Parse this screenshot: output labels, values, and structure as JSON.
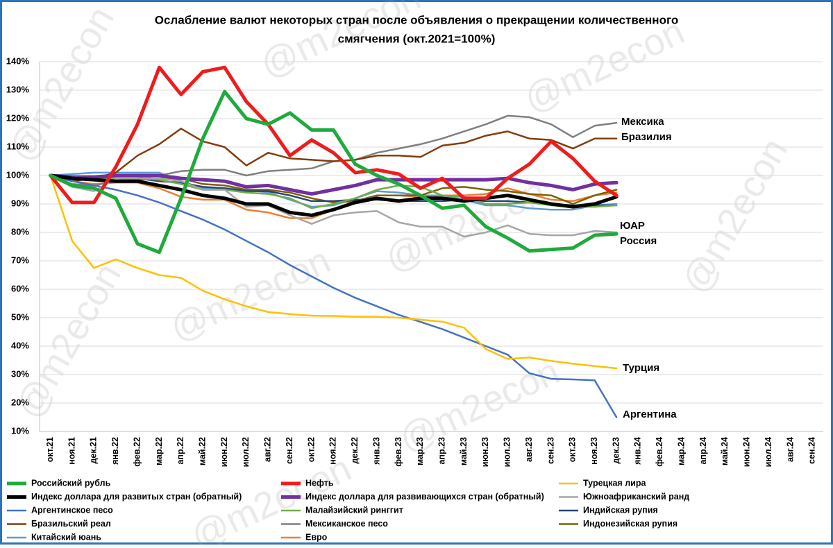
{
  "chart_data": {
    "type": "line",
    "title": [
      "Ослабление валют некоторых стран после объявления о прекращении количественного",
      "смягчения  (окт.2021=100%)"
    ],
    "watermark": "@m2econ",
    "categories": [
      "окт.21",
      "ноя.21",
      "дек.21",
      "янв.22",
      "фев.22",
      "мар.22",
      "апр.22",
      "май.22",
      "июн.22",
      "июл.22",
      "авг.22",
      "сен.22",
      "окт.22",
      "ноя.22",
      "дек.22",
      "янв.23",
      "фев.23",
      "мар.23",
      "апр.23",
      "май.23",
      "июн.23",
      "июл.23",
      "авг.23",
      "сен.23",
      "окт.23",
      "ноя.23",
      "дек.23",
      "янв.24",
      "фев.24",
      "мар.24",
      "апр.24",
      "май.24",
      "июн.24",
      "июл.24",
      "авг.24",
      "сен.24"
    ],
    "ylim": [
      10,
      140
    ],
    "yticks": [
      {
        "value": 10,
        "label": "10%"
      },
      {
        "value": 20,
        "label": "20%"
      },
      {
        "value": 30,
        "label": "30%"
      },
      {
        "value": 40,
        "label": "40%"
      },
      {
        "value": 50,
        "label": "50%"
      },
      {
        "value": 60,
        "label": "60%"
      },
      {
        "value": 70,
        "label": "70%"
      },
      {
        "value": 80,
        "label": "80%"
      },
      {
        "value": 90,
        "label": "90%"
      },
      {
        "value": 100,
        "label": "100%"
      },
      {
        "value": 110,
        "label": "110%"
      },
      {
        "value": 120,
        "label": "120%"
      },
      {
        "value": 130,
        "label": "130%"
      },
      {
        "value": 140,
        "label": "140%"
      }
    ],
    "grid": true,
    "legend": "bottom",
    "annotations": [
      "Мексика",
      "Бразилия",
      "ЮАР",
      "Россия",
      "Турция",
      "Аргентина"
    ],
    "series": [
      {
        "name": "Российский рубль",
        "color": "#1faa3c",
        "line_width": 5,
        "values": [
          100,
          96.5,
          95.5,
          92,
          76,
          73,
          92,
          113,
          129.5,
          120,
          118,
          122,
          116,
          116,
          104,
          100,
          97,
          93,
          88.5,
          89.5,
          82,
          78,
          73.5,
          74,
          74.5,
          79,
          79.5,
          null,
          null,
          null,
          null,
          null,
          null,
          null,
          null,
          null
        ]
      },
      {
        "name": "Нефть",
        "color": "#ee1c1c",
        "line_width": 5,
        "values": [
          100,
          90.5,
          90.5,
          103,
          118,
          138,
          128.5,
          136.5,
          138,
          126,
          118,
          107,
          112.5,
          108,
          101,
          102,
          100.5,
          95.5,
          99,
          92,
          92,
          99,
          104,
          112,
          106,
          98,
          93,
          null,
          null,
          null,
          null,
          null,
          null,
          null,
          null,
          null
        ]
      },
      {
        "name": "Турецкая лира",
        "color": "#ffc000",
        "line_width": 2.5,
        "values": [
          100,
          77,
          67.5,
          70.5,
          67.5,
          65,
          64,
          59.5,
          56.5,
          54,
          52,
          51.3,
          50.7,
          50.6,
          50.4,
          50.3,
          50,
          49.3,
          48.6,
          46.5,
          39,
          35.5,
          36,
          34.8,
          33.8,
          33,
          32.2,
          null,
          null,
          null,
          null,
          null,
          null,
          null,
          null,
          null
        ]
      },
      {
        "name": "Индекс доллара для развитых стран (обратный)",
        "color": "#000000",
        "line_width": 5,
        "values": [
          100,
          99,
          98.5,
          98,
          98,
          96.5,
          95,
          93,
          92,
          90,
          90,
          87,
          86,
          88,
          90.5,
          92,
          91,
          92,
          92,
          91,
          92,
          93,
          91.5,
          90,
          89,
          90,
          92.5,
          null,
          null,
          null,
          null,
          null,
          null,
          null,
          null,
          null
        ]
      },
      {
        "name": "Индекс доллара для развивающихся стран (обратный)",
        "color": "#7030a0",
        "line_width": 5,
        "values": [
          100,
          99.5,
          99.5,
          100,
          100,
          100,
          99,
          98.5,
          98,
          96,
          96.5,
          95,
          93.5,
          95,
          96.5,
          98.5,
          98.5,
          98.5,
          98.5,
          98.5,
          98.5,
          99,
          97.5,
          96.5,
          95,
          97,
          97.5,
          null,
          null,
          null,
          null,
          null,
          null,
          null,
          null,
          null
        ]
      },
      {
        "name": "Южноафриканский ранд",
        "color": "#a6a6a6",
        "line_width": 2.5,
        "values": [
          100,
          96,
          94.5,
          99,
          99,
          99,
          98,
          95,
          95,
          89,
          89.5,
          86,
          83,
          86,
          87,
          87.5,
          83.5,
          82,
          82,
          78.5,
          80,
          82.5,
          79.5,
          79,
          79,
          80.5,
          80,
          null,
          null,
          null,
          null,
          null,
          null,
          null,
          null,
          null
        ]
      },
      {
        "name": "Аргентинское песо",
        "color": "#4472c4",
        "line_width": 2.5,
        "values": [
          100,
          98,
          96.5,
          95,
          93,
          90.5,
          87.5,
          84.5,
          81,
          77,
          73,
          68.5,
          64.5,
          60.5,
          57,
          54,
          51,
          48.5,
          46,
          43,
          40,
          37,
          30.5,
          28.5,
          28.3,
          28,
          15,
          null,
          null,
          null,
          null,
          null,
          null,
          null,
          null,
          null
        ]
      },
      {
        "name": "Малайзийский ринггит",
        "color": "#70ad47",
        "line_width": 2.5,
        "values": [
          100,
          99,
          98.5,
          99,
          99,
          98.5,
          97,
          95,
          95,
          94,
          93.5,
          92,
          88.5,
          90,
          92,
          95,
          96.5,
          96,
          93,
          92.5,
          90,
          90,
          90.5,
          89.5,
          89,
          89,
          89.5,
          null,
          null,
          null,
          null,
          null,
          null,
          null,
          null,
          null
        ]
      },
      {
        "name": "Индийская рупия",
        "color": "#264478",
        "line_width": 2.5,
        "values": [
          100,
          99.5,
          99,
          99,
          99,
          98,
          97.5,
          96,
          95.5,
          94.5,
          94.5,
          93,
          91,
          91,
          91.5,
          91.5,
          91,
          91,
          91,
          91.5,
          91,
          91,
          90.5,
          90,
          89.5,
          89.5,
          89.5,
          null,
          null,
          null,
          null,
          null,
          null,
          null,
          null,
          null
        ]
      },
      {
        "name": "Бразильский реал",
        "color": "#843c0c",
        "line_width": 2.5,
        "values": [
          100,
          98,
          99,
          101,
          107,
          111,
          116.5,
          112,
          110,
          103.5,
          108,
          106,
          105.5,
          105,
          105.5,
          107,
          107,
          106.5,
          110.5,
          111.5,
          114,
          115.5,
          113,
          112.5,
          109.5,
          113,
          113,
          null,
          null,
          null,
          null,
          null,
          null,
          null,
          null,
          null
        ]
      },
      {
        "name": "Мексиканское песо",
        "color": "#7f7f7f",
        "line_width": 2.5,
        "values": [
          100,
          97,
          96.5,
          98,
          99,
          100,
          101.5,
          102,
          102,
          100,
          101.5,
          102,
          102.5,
          105,
          105.5,
          108,
          109.5,
          111,
          113,
          115.5,
          118,
          121,
          120.5,
          118,
          113.5,
          117.5,
          118.5,
          null,
          null,
          null,
          null,
          null,
          null,
          null,
          null,
          null
        ]
      },
      {
        "name": "Индонезийская рупия",
        "color": "#7f6000",
        "line_width": 2.5,
        "values": [
          100,
          99.5,
          99,
          99,
          98.5,
          99,
          99,
          97,
          96.5,
          95,
          95,
          94,
          92,
          90.5,
          91,
          93,
          93,
          93,
          95.5,
          96,
          95,
          94.5,
          93.5,
          93,
          90,
          93,
          95,
          null,
          null,
          null,
          null,
          null,
          null,
          null,
          null,
          null
        ]
      },
      {
        "name": "Китайский юань",
        "color": "#5b9bd5",
        "line_width": 2.5,
        "values": [
          100,
          100.5,
          101,
          101,
          101,
          101,
          98,
          95.5,
          95.5,
          95,
          94,
          91.5,
          89,
          89.5,
          92,
          94.5,
          94,
          93,
          93,
          91.5,
          89.5,
          89.5,
          88.5,
          88,
          88,
          89.5,
          90,
          null,
          null,
          null,
          null,
          null,
          null,
          null,
          null,
          null
        ]
      },
      {
        "name": "Евро",
        "color": "#ed7d31",
        "line_width": 2.5,
        "values": [
          100,
          98,
          97,
          97.5,
          97.5,
          95.5,
          92.5,
          91.5,
          91.5,
          88,
          87,
          85,
          85,
          88,
          91,
          93,
          93,
          92.5,
          93,
          93,
          93.5,
          95.5,
          93.5,
          91.5,
          91,
          93,
          94,
          null,
          null,
          null,
          null,
          null,
          null,
          null,
          null,
          null
        ]
      }
    ]
  }
}
